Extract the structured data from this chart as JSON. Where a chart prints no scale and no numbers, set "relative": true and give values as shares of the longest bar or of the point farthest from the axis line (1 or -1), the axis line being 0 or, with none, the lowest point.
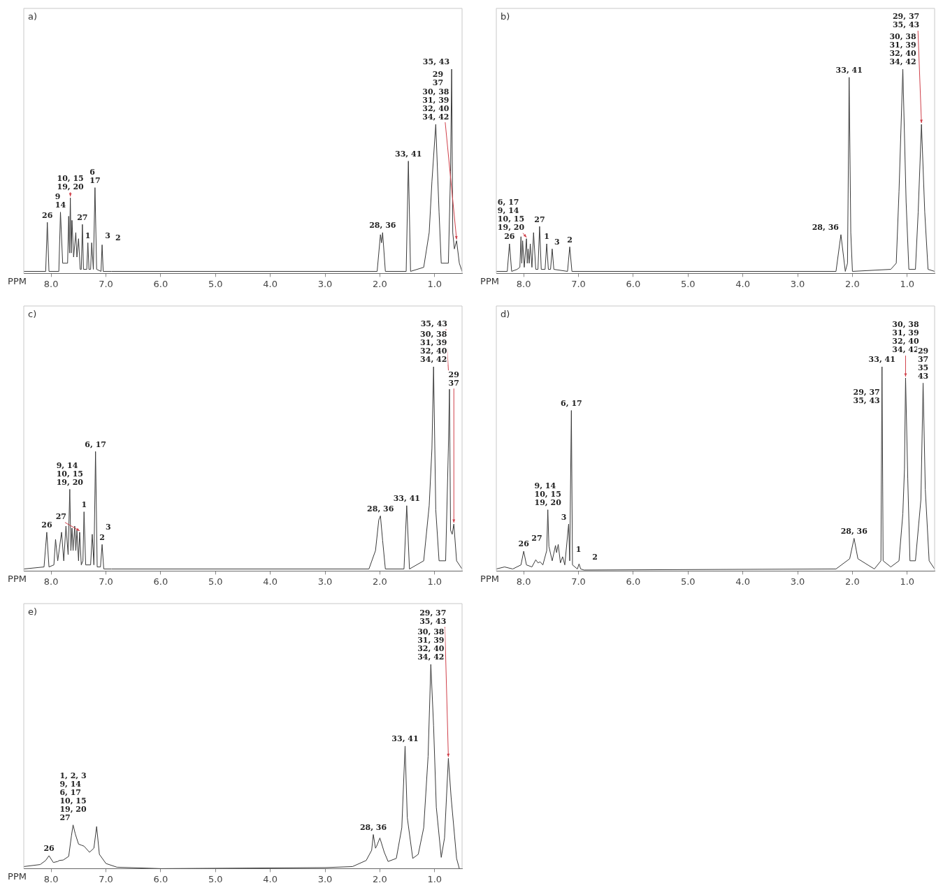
{
  "chart_data": [
    {
      "type": "line",
      "title": "a)",
      "xlabel": "PPM",
      "relative": true,
      "color": "#3a3a3a",
      "xlim": [
        8.5,
        0.5
      ],
      "xticks": [
        {
          "value": 8,
          "label": "8.0"
        },
        {
          "value": 7,
          "label": "7.0"
        },
        {
          "value": 6,
          "label": "6.0"
        },
        {
          "value": 5,
          "label": "5.0"
        },
        {
          "value": 4,
          "label": "4.0"
        },
        {
          "value": 3,
          "label": "3.0"
        },
        {
          "value": 2,
          "label": "2.0"
        },
        {
          "value": 1,
          "label": "1.0"
        }
      ],
      "x": [
        8.5,
        8.1,
        8.07,
        8.04,
        7.86,
        7.83,
        7.79,
        7.7,
        7.68,
        7.665,
        7.65,
        7.635,
        7.62,
        7.59,
        7.55,
        7.53,
        7.5,
        7.47,
        7.45,
        7.43,
        7.41,
        7.35,
        7.33,
        7.31,
        7.28,
        7.26,
        7.23,
        7.2,
        7.17,
        7.09,
        7.07,
        7.05,
        6.9,
        2.05,
        1.99,
        1.97,
        1.95,
        1.9,
        1.52,
        1.48,
        1.44,
        1.2,
        1.1,
        1.05,
        0.98,
        0.92,
        0.88,
        0.75,
        0.71,
        0.69,
        0.67,
        0.64,
        0.6,
        0.55,
        0.5
      ],
      "values": [
        0.01,
        0.01,
        0.25,
        0.01,
        0.01,
        0.3,
        0.05,
        0.05,
        0.28,
        0.1,
        0.37,
        0.1,
        0.26,
        0.08,
        0.2,
        0.08,
        0.17,
        0.02,
        0.02,
        0.24,
        0.02,
        0.02,
        0.15,
        0.02,
        0.02,
        0.15,
        0.02,
        0.42,
        0.02,
        0.01,
        0.14,
        0.01,
        0.01,
        0.01,
        0.19,
        0.15,
        0.2,
        0.01,
        0.01,
        0.55,
        0.01,
        0.03,
        0.2,
        0.45,
        0.73,
        0.3,
        0.05,
        0.05,
        0.5,
        1.0,
        0.2,
        0.12,
        0.16,
        0.05,
        0.01
      ],
      "annotations": [
        {
          "text": "26",
          "x": 8.07,
          "y": 0.25
        },
        {
          "text": "9\n14",
          "x": 7.83,
          "y": 0.3
        },
        {
          "text": "10, 15\n19, 20",
          "x": 7.65,
          "y": 0.37
        },
        {
          "text": "27",
          "x": 7.43,
          "y": 0.24
        },
        {
          "text": "1",
          "x": 7.33,
          "y": 0.15
        },
        {
          "text": "3",
          "x": 7.26,
          "y": 0.15
        },
        {
          "text": "6\n17",
          "x": 7.2,
          "y": 0.42
        },
        {
          "text": "2",
          "x": 7.07,
          "y": 0.14
        },
        {
          "text": "28, 36",
          "x": 1.95,
          "y": 0.2
        },
        {
          "text": "33, 41",
          "x": 1.48,
          "y": 0.55
        },
        {
          "text": "30, 38\n31, 39\n32, 40\n34, 42",
          "x": 0.98,
          "y": 0.73
        },
        {
          "text": "35, 43",
          "x": 0.69,
          "y": 1.0
        },
        {
          "text": "29\n37",
          "x": 0.6,
          "y": 0.16
        }
      ]
    },
    {
      "type": "line",
      "title": "b)",
      "xlabel": "PPM",
      "relative": true,
      "color": "#3a3a3a",
      "xlim": [
        8.5,
        0.5
      ],
      "xticks": [
        {
          "value": 8,
          "label": "8.0"
        },
        {
          "value": 7,
          "label": "7.0"
        },
        {
          "value": 6,
          "label": "6.0"
        },
        {
          "value": 5,
          "label": "5.0"
        },
        {
          "value": 4,
          "label": "4.0"
        },
        {
          "value": 3,
          "label": "3.0"
        },
        {
          "value": 2,
          "label": "2.0"
        },
        {
          "value": 1,
          "label": "1.0"
        }
      ],
      "x": [
        8.5,
        8.3,
        8.26,
        8.22,
        8.12,
        8.07,
        8.05,
        8.035,
        8.02,
        7.99,
        7.95,
        7.935,
        7.92,
        7.9,
        7.88,
        7.85,
        7.82,
        7.78,
        7.74,
        7.71,
        7.68,
        7.61,
        7.58,
        7.55,
        7.51,
        7.48,
        7.45,
        7.2,
        7.16,
        7.12,
        2.3,
        2.21,
        2.13,
        2.09,
        2.06,
        2.03,
        2.0,
        1.3,
        1.2,
        1.15,
        1.08,
        1.02,
        0.97,
        0.85,
        0.8,
        0.74,
        0.68,
        0.62,
        0.5
      ],
      "values": [
        0.01,
        0.01,
        0.145,
        0.01,
        0.02,
        0.03,
        0.18,
        0.05,
        0.16,
        0.03,
        0.17,
        0.05,
        0.12,
        0.05,
        0.145,
        0.03,
        0.2,
        0.02,
        0.02,
        0.23,
        0.02,
        0.02,
        0.145,
        0.02,
        0.02,
        0.12,
        0.02,
        0.01,
        0.13,
        0.01,
        0.01,
        0.19,
        0.01,
        0.05,
        0.96,
        0.2,
        0.01,
        0.02,
        0.05,
        0.4,
        1.0,
        0.35,
        0.02,
        0.02,
        0.3,
        0.73,
        0.3,
        0.02,
        0.01
      ],
      "annotations": [
        {
          "text": "26",
          "x": 8.26,
          "y": 0.145
        },
        {
          "text": "6, 17\n9, 14\n10, 15\n19, 20",
          "x": 7.95,
          "y": 0.17
        },
        {
          "text": "27",
          "x": 7.71,
          "y": 0.23
        },
        {
          "text": "1",
          "x": 7.58,
          "y": 0.145
        },
        {
          "text": "3",
          "x": 7.48,
          "y": 0.12
        },
        {
          "text": "2",
          "x": 7.16,
          "y": 0.13
        },
        {
          "text": "28, 36",
          "x": 2.21,
          "y": 0.19
        },
        {
          "text": "33, 41",
          "x": 2.06,
          "y": 0.96
        },
        {
          "text": "30, 38\n31, 39\n32, 40\n34, 42",
          "x": 1.08,
          "y": 1.0
        },
        {
          "text": "29, 37\n35, 43",
          "x": 0.74,
          "y": 0.73
        }
      ]
    },
    {
      "type": "line",
      "title": "c)",
      "xlabel": "PPM",
      "relative": true,
      "color": "#3a3a3a",
      "xlim": [
        8.5,
        0.5
      ],
      "xticks": [
        {
          "value": 8,
          "label": "8.0"
        },
        {
          "value": 7,
          "label": "7.0"
        },
        {
          "value": 6,
          "label": "6.0"
        },
        {
          "value": 5,
          "label": "5.0"
        },
        {
          "value": 4,
          "label": "4.0"
        },
        {
          "value": 3,
          "label": "3.0"
        },
        {
          "value": 2,
          "label": "2.0"
        },
        {
          "value": 1,
          "label": "1.0"
        }
      ],
      "x": [
        8.5,
        8.13,
        8.08,
        8.04,
        7.95,
        7.92,
        7.88,
        7.81,
        7.77,
        7.73,
        7.69,
        7.66,
        7.64,
        7.62,
        7.6,
        7.57,
        7.55,
        7.53,
        7.5,
        7.48,
        7.45,
        7.42,
        7.4,
        7.37,
        7.28,
        7.25,
        7.22,
        7.19,
        7.16,
        7.1,
        7.07,
        7.04,
        6.9,
        2.2,
        2.08,
        2.02,
        1.99,
        1.95,
        1.9,
        1.56,
        1.51,
        1.46,
        1.2,
        1.1,
        1.05,
        1.02,
        0.98,
        0.92,
        0.8,
        0.75,
        0.73,
        0.71,
        0.68,
        0.65,
        0.6,
        0.5
      ],
      "values": [
        0.01,
        0.02,
        0.19,
        0.02,
        0.03,
        0.155,
        0.05,
        0.19,
        0.05,
        0.22,
        0.08,
        0.4,
        0.1,
        0.21,
        0.1,
        0.22,
        0.1,
        0.2,
        0.05,
        0.19,
        0.03,
        0.05,
        0.29,
        0.03,
        0.03,
        0.18,
        0.03,
        0.585,
        0.02,
        0.02,
        0.13,
        0.01,
        0.01,
        0.01,
        0.1,
        0.25,
        0.27,
        0.15,
        0.01,
        0.01,
        0.32,
        0.01,
        0.05,
        0.32,
        0.6,
        1.0,
        0.3,
        0.05,
        0.05,
        0.6,
        0.89,
        0.2,
        0.18,
        0.23,
        0.05,
        0.01
      ],
      "annotations": [
        {
          "text": "26",
          "x": 8.08,
          "y": 0.19
        },
        {
          "text": "9, 14\n10, 15\n19, 20",
          "x": 7.66,
          "y": 0.4
        },
        {
          "text": "27",
          "x": 7.48,
          "y": 0.19
        },
        {
          "text": "1",
          "x": 7.4,
          "y": 0.29
        },
        {
          "text": "3",
          "x": 7.25,
          "y": 0.18
        },
        {
          "text": "6, 17",
          "x": 7.19,
          "y": 0.585
        },
        {
          "text": "2",
          "x": 7.07,
          "y": 0.13
        },
        {
          "text": "28, 36",
          "x": 1.99,
          "y": 0.27
        },
        {
          "text": "33, 41",
          "x": 1.51,
          "y": 0.32
        },
        {
          "text": "30, 38\n31, 39\n32, 40\n34, 42",
          "x": 1.02,
          "y": 1.0
        },
        {
          "text": "35, 43",
          "x": 0.73,
          "y": 0.89
        },
        {
          "text": "29\n37",
          "x": 0.65,
          "y": 0.23
        }
      ]
    },
    {
      "type": "line",
      "title": "d)",
      "xlabel": "PPM",
      "relative": true,
      "color": "#3a3a3a",
      "xlim": [
        8.5,
        0.5
      ],
      "xticks": [
        {
          "value": 8,
          "label": "8.0"
        },
        {
          "value": 7,
          "label": "7.0"
        },
        {
          "value": 6,
          "label": "6.0"
        },
        {
          "value": 5,
          "label": "5.0"
        },
        {
          "value": 4,
          "label": "4.0"
        },
        {
          "value": 3,
          "label": "3.0"
        },
        {
          "value": 2,
          "label": "2.0"
        },
        {
          "value": 1,
          "label": "1.0"
        }
      ],
      "x": [
        8.5,
        8.35,
        8.2,
        8.05,
        8.0,
        7.95,
        7.85,
        7.78,
        7.74,
        7.7,
        7.65,
        7.58,
        7.56,
        7.54,
        7.48,
        7.42,
        7.4,
        7.37,
        7.33,
        7.29,
        7.25,
        7.18,
        7.16,
        7.13,
        7.11,
        7.02,
        6.99,
        6.96,
        6.9,
        2.3,
        2.05,
        1.97,
        1.9,
        1.6,
        1.48,
        1.46,
        1.44,
        1.3,
        1.15,
        1.08,
        1.05,
        1.03,
        0.99,
        0.95,
        0.85,
        0.75,
        0.71,
        0.67,
        0.6,
        0.5
      ],
      "values": [
        0.01,
        0.02,
        0.01,
        0.03,
        0.097,
        0.03,
        0.02,
        0.055,
        0.04,
        0.045,
        0.03,
        0.1,
        0.3,
        0.12,
        0.05,
        0.125,
        0.09,
        0.13,
        0.04,
        0.07,
        0.03,
        0.23,
        0.05,
        0.786,
        0.03,
        0.01,
        0.035,
        0.01,
        0.005,
        0.01,
        0.06,
        0.16,
        0.06,
        0.01,
        0.05,
        1.0,
        0.05,
        0.02,
        0.05,
        0.28,
        0.5,
        0.945,
        0.45,
        0.05,
        0.05,
        0.35,
        0.92,
        0.4,
        0.05,
        0.01
      ],
      "annotations": [
        {
          "text": "26",
          "x": 8.0,
          "y": 0.097
        },
        {
          "text": "9, 14\n10, 15\n19, 20",
          "x": 7.56,
          "y": 0.3
        },
        {
          "text": "27",
          "x": 7.42,
          "y": 0.125
        },
        {
          "text": "1",
          "x": 7.29,
          "y": 0.07
        },
        {
          "text": "3",
          "x": 7.18,
          "y": 0.23
        },
        {
          "text": "6, 17",
          "x": 7.13,
          "y": 0.786
        },
        {
          "text": "2",
          "x": 6.99,
          "y": 0.035
        },
        {
          "text": "28, 36",
          "x": 1.97,
          "y": 0.16
        },
        {
          "text": "33, 41",
          "x": 1.46,
          "y": 1.0
        },
        {
          "text": "29, 37\n35, 43",
          "x": 1.46,
          "y": 0.8
        },
        {
          "text": "30, 38\n31, 39\n32, 40\n34, 42",
          "x": 1.03,
          "y": 0.945
        },
        {
          "text": "29\n37\n35\n43",
          "x": 0.71,
          "y": 0.92
        }
      ]
    },
    {
      "type": "line",
      "title": "e)",
      "xlabel": "PPM",
      "relative": true,
      "color": "#3a3a3a",
      "xlim": [
        8.5,
        0.5
      ],
      "xticks": [
        {
          "value": 8,
          "label": "8.0"
        },
        {
          "value": 7,
          "label": "7.0"
        },
        {
          "value": 6,
          "label": "6.0"
        },
        {
          "value": 5,
          "label": "5.0"
        },
        {
          "value": 4,
          "label": "4.0"
        },
        {
          "value": 3,
          "label": "3.0"
        },
        {
          "value": 2,
          "label": "2.0"
        },
        {
          "value": 1,
          "label": "1.0"
        }
      ],
      "x": [
        8.5,
        8.2,
        8.1,
        8.04,
        7.96,
        7.88,
        7.85,
        7.78,
        7.68,
        7.63,
        7.6,
        7.56,
        7.5,
        7.45,
        7.4,
        7.3,
        7.22,
        7.17,
        7.12,
        7.0,
        6.8,
        6.0,
        3.0,
        2.5,
        2.25,
        2.15,
        2.12,
        2.08,
        2.06,
        2.0,
        1.92,
        1.85,
        1.7,
        1.6,
        1.54,
        1.5,
        1.4,
        1.3,
        1.2,
        1.12,
        1.07,
        1.02,
        0.97,
        0.88,
        0.82,
        0.75,
        0.7,
        0.6,
        0.55
      ],
      "values": [
        0.01,
        0.02,
        0.04,
        0.063,
        0.03,
        0.035,
        0.04,
        0.042,
        0.06,
        0.16,
        0.214,
        0.17,
        0.12,
        0.115,
        0.11,
        0.08,
        0.1,
        0.206,
        0.07,
        0.025,
        0.007,
        0.0,
        0.005,
        0.01,
        0.04,
        0.09,
        0.167,
        0.1,
        0.11,
        0.15,
        0.08,
        0.035,
        0.05,
        0.2,
        0.6,
        0.25,
        0.05,
        0.07,
        0.2,
        0.55,
        1.0,
        0.7,
        0.3,
        0.055,
        0.15,
        0.54,
        0.35,
        0.05,
        0.0
      ],
      "annotations": [
        {
          "text": "26",
          "x": 8.04,
          "y": 0.063
        },
        {
          "text": "1, 2, 3\n9, 14\n6, 17\n10, 15\n19, 20\n27",
          "x": 7.6,
          "y": 0.214
        },
        {
          "text": "28, 36",
          "x": 2.12,
          "y": 0.167
        },
        {
          "text": "33, 41",
          "x": 1.54,
          "y": 0.6
        },
        {
          "text": "30, 38\n31, 39\n32, 40\n34, 42",
          "x": 1.07,
          "y": 1.0
        },
        {
          "text": "29, 37\n35, 43",
          "x": 0.75,
          "y": 0.54
        }
      ]
    }
  ]
}
